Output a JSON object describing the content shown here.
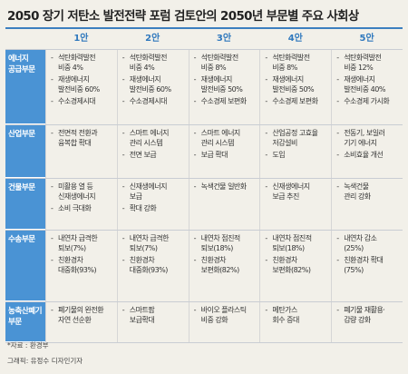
{
  "title": "2050 장기 저탄소 발전전략 포럼 검토안의 2050년 부문별 주요 사회상",
  "columns": [
    "1안",
    "2안",
    "3안",
    "4안",
    "5안"
  ],
  "rows": [
    {
      "label": "에너지 공급부문",
      "cells": [
        [
          "석탄화력발전\n비중 4%",
          "재생에너지\n발전비중 60%",
          "수소경제시대"
        ],
        [
          "석탄화력발전\n비중 4%",
          "재생에너지\n발전비중 60%",
          "수소경제시대"
        ],
        [
          "석탄화력발전\n비중 8%",
          "재생에너지\n발전비중 50%",
          "수소경제 보편화"
        ],
        [
          "석탄화력발전\n비중 8%",
          "재생에너지\n발전비중 50%",
          "수소경제 보편화"
        ],
        [
          "석탄화력발전\n비중 12%",
          "재생에너지\n발전비중 40%",
          "수소경제 가시화"
        ]
      ]
    },
    {
      "label": "산업부문",
      "cells": [
        [
          "전면적 전환과\n융복합 확대"
        ],
        [
          "스마트 에너지\n관리 시스템",
          "전면 보급"
        ],
        [
          "스마트 에너지\n관리 시스템",
          "보급 확대"
        ],
        [
          "산업공정 고효율\n저감설비",
          "도입"
        ],
        [
          "전동기, 보일러\n기기 에너지",
          "소비효율 개선"
        ]
      ]
    },
    {
      "label": "건물부문",
      "cells": [
        [
          "미활용 열 등\n신재생에너지",
          "소비 극대화"
        ],
        [
          "신재생에너지\n보급",
          "확대 강화"
        ],
        [
          "녹색건물 일반화"
        ],
        [
          "신재생에너지\n보급 추진"
        ],
        [
          "녹색건물\n관리 강화"
        ]
      ]
    },
    {
      "label": "수송부문",
      "cells": [
        [
          "내연차 급격한\n퇴보(7%)",
          "친환경차\n대중화(93%)"
        ],
        [
          "내연차 급격한\n퇴보(7%)",
          "친환경차\n대중화(93%)"
        ],
        [
          "내연차 점진적\n퇴보(18%)",
          "친환경차\n보편화(82%)"
        ],
        [
          "내연차 점진적\n퇴보(18%)",
          "친환경차\n보편화(82%)"
        ],
        [
          "내연차 감소\n(25%)",
          "친환경차 확대\n(75%)"
        ]
      ]
    },
    {
      "label": "농축산폐기 부문",
      "cells": [
        [
          "폐기물의 완전환\n자연 선순환"
        ],
        [
          "스마트팜\n보급확대"
        ],
        [
          "바이오 플라스틱\n비중 강화"
        ],
        [
          "메탄가스\n회수 증대"
        ],
        [
          "폐기물 재활용·\n감량 강화"
        ]
      ]
    }
  ],
  "source": "*자료 : 환경부",
  "credit": "그래픽: 유정수 디자인기자"
}
